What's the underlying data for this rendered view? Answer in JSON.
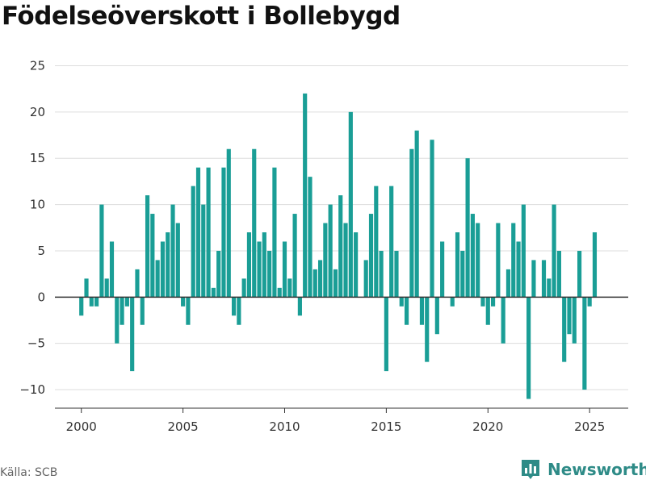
{
  "title": "Födelseöverskott i Bollebygd",
  "source": "Källa: SCB",
  "brand": {
    "name": "Newsworthy",
    "logo_icon": "bar-chart-logo-icon"
  },
  "colors": {
    "bar": "#1a9e96",
    "brand": "#2e8b87",
    "grid": "#dddddd",
    "zero": "#333333"
  },
  "chart_data": {
    "type": "bar",
    "title": "Födelseöverskott i Bollebygd",
    "xlabel": "",
    "ylabel": "",
    "ylim": [
      -12,
      26
    ],
    "xlim": [
      1998.7,
      2026.9
    ],
    "grid": true,
    "x_ticks": [
      2000,
      2005,
      2010,
      2015,
      2020,
      2025
    ],
    "y_ticks": [
      -10,
      -5,
      0,
      5,
      10,
      15,
      20,
      25
    ],
    "tick_labels": {
      "x": [
        "2000",
        "2005",
        "2010",
        "2015",
        "2020",
        "2025"
      ],
      "y": [
        "−10",
        "−5",
        "0",
        "5",
        "10",
        "15",
        "20",
        "25"
      ]
    },
    "start_year": 2000,
    "bars_per_year": 4,
    "values": [
      -2,
      2,
      -1,
      -1,
      10,
      2,
      6,
      -5,
      -3,
      -1,
      -8,
      3,
      -3,
      11,
      9,
      4,
      6,
      7,
      10,
      8,
      -1,
      -3,
      12,
      14,
      10,
      14,
      1,
      5,
      14,
      16,
      -2,
      -3,
      2,
      7,
      16,
      6,
      7,
      5,
      14,
      1,
      6,
      2,
      9,
      -2,
      22,
      13,
      3,
      4,
      8,
      10,
      3,
      11,
      8,
      20,
      7,
      0,
      4,
      9,
      12,
      5,
      -8,
      12,
      5,
      -1,
      -3,
      16,
      18,
      -3,
      -7,
      17,
      -4,
      6,
      0,
      -1,
      7,
      5,
      15,
      9,
      8,
      -1,
      -3,
      -1,
      8,
      -5,
      3,
      8,
      6,
      10,
      -11,
      4,
      0,
      4,
      2,
      10,
      5,
      -7,
      -4,
      -5,
      5,
      -10,
      -1,
      7
    ]
  }
}
